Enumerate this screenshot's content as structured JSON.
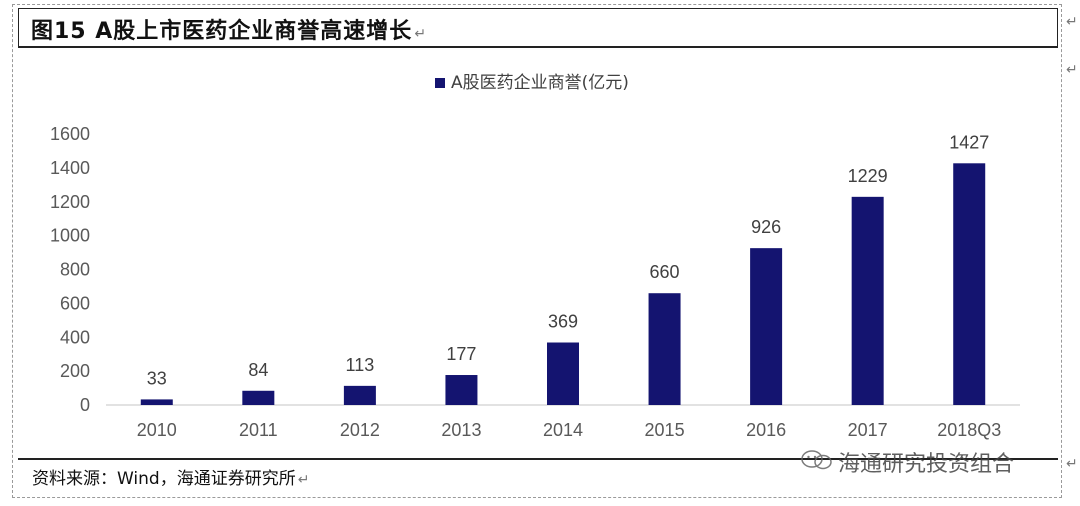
{
  "figure": {
    "title": "图15 A股上市医药企业商誉高速增长",
    "source": "资料来源：Wind，海通证券研究所",
    "watermark": "海通研究投资组合",
    "para_mark": "↵"
  },
  "colors": {
    "bar": "#141470",
    "axis_text": "#595959",
    "label_text": "#404040",
    "axis_line": "#d9d9d9"
  },
  "icons": {
    "watermark": "wechat-icon"
  },
  "chart_data": {
    "type": "bar",
    "title": "",
    "xlabel": "",
    "ylabel": "",
    "legend": {
      "placement": "top-center",
      "entries": [
        "A股医药企业商誉(亿元)"
      ]
    },
    "ylim": [
      0,
      1600
    ],
    "yticks": [
      0,
      200,
      400,
      600,
      800,
      1000,
      1200,
      1400,
      1600
    ],
    "grid": false,
    "categories": [
      "2010",
      "2011",
      "2012",
      "2013",
      "2014",
      "2015",
      "2016",
      "2017",
      "2018Q3"
    ],
    "series": [
      {
        "name": "A股医药企业商誉(亿元)",
        "values": [
          33,
          84,
          113,
          177,
          369,
          660,
          926,
          1229,
          1427
        ],
        "labels": [
          "33",
          "84",
          "113",
          "177",
          "369",
          "660",
          "926",
          "1229",
          "1427"
        ]
      }
    ]
  }
}
